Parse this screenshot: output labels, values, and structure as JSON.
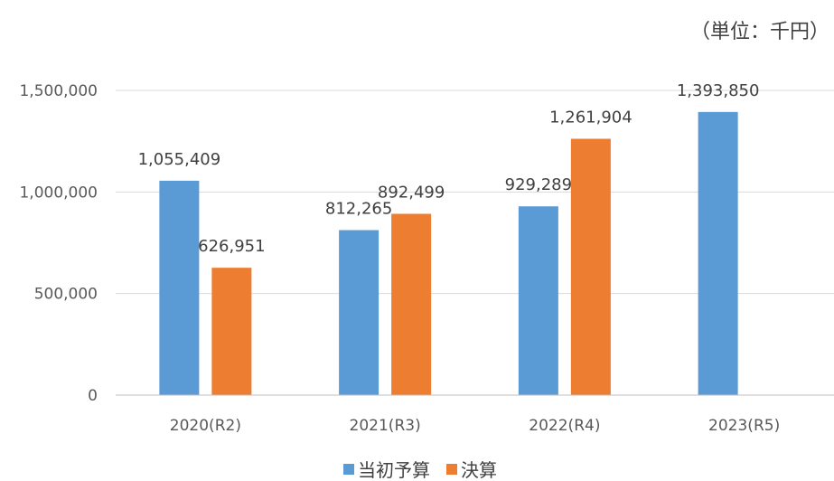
{
  "unit_label": "（単位：千円）",
  "colors": {
    "initial_budget": "#5b9bd5",
    "settlement": "#ed7d31",
    "grid": "#d9d9d9",
    "axis": "#bfbfbf"
  },
  "chart_data": {
    "type": "bar",
    "title": "",
    "xlabel": "",
    "ylabel": "",
    "categories": [
      "2020(R2)",
      "2021(R3)",
      "2022(R4)",
      "2023(R5)"
    ],
    "ylim": [
      0,
      1500000
    ],
    "yticks": [
      0,
      500000,
      1000000,
      1500000
    ],
    "ytick_labels": [
      "0",
      "500,000",
      "1,000,000",
      "1,500,000"
    ],
    "grid": true,
    "legend": "bottom",
    "series": [
      {
        "name": "当初予算",
        "color": "#5b9bd5",
        "values": [
          1055409,
          812265,
          929289,
          1393850
        ],
        "labels": [
          "1,055,409",
          "812,265",
          "929,289",
          "1,393,850"
        ]
      },
      {
        "name": "決算",
        "color": "#ed7d31",
        "values": [
          626951,
          892499,
          1261904,
          null
        ],
        "labels": [
          "626,951",
          "892,499",
          "1,261,904",
          null
        ]
      }
    ]
  }
}
